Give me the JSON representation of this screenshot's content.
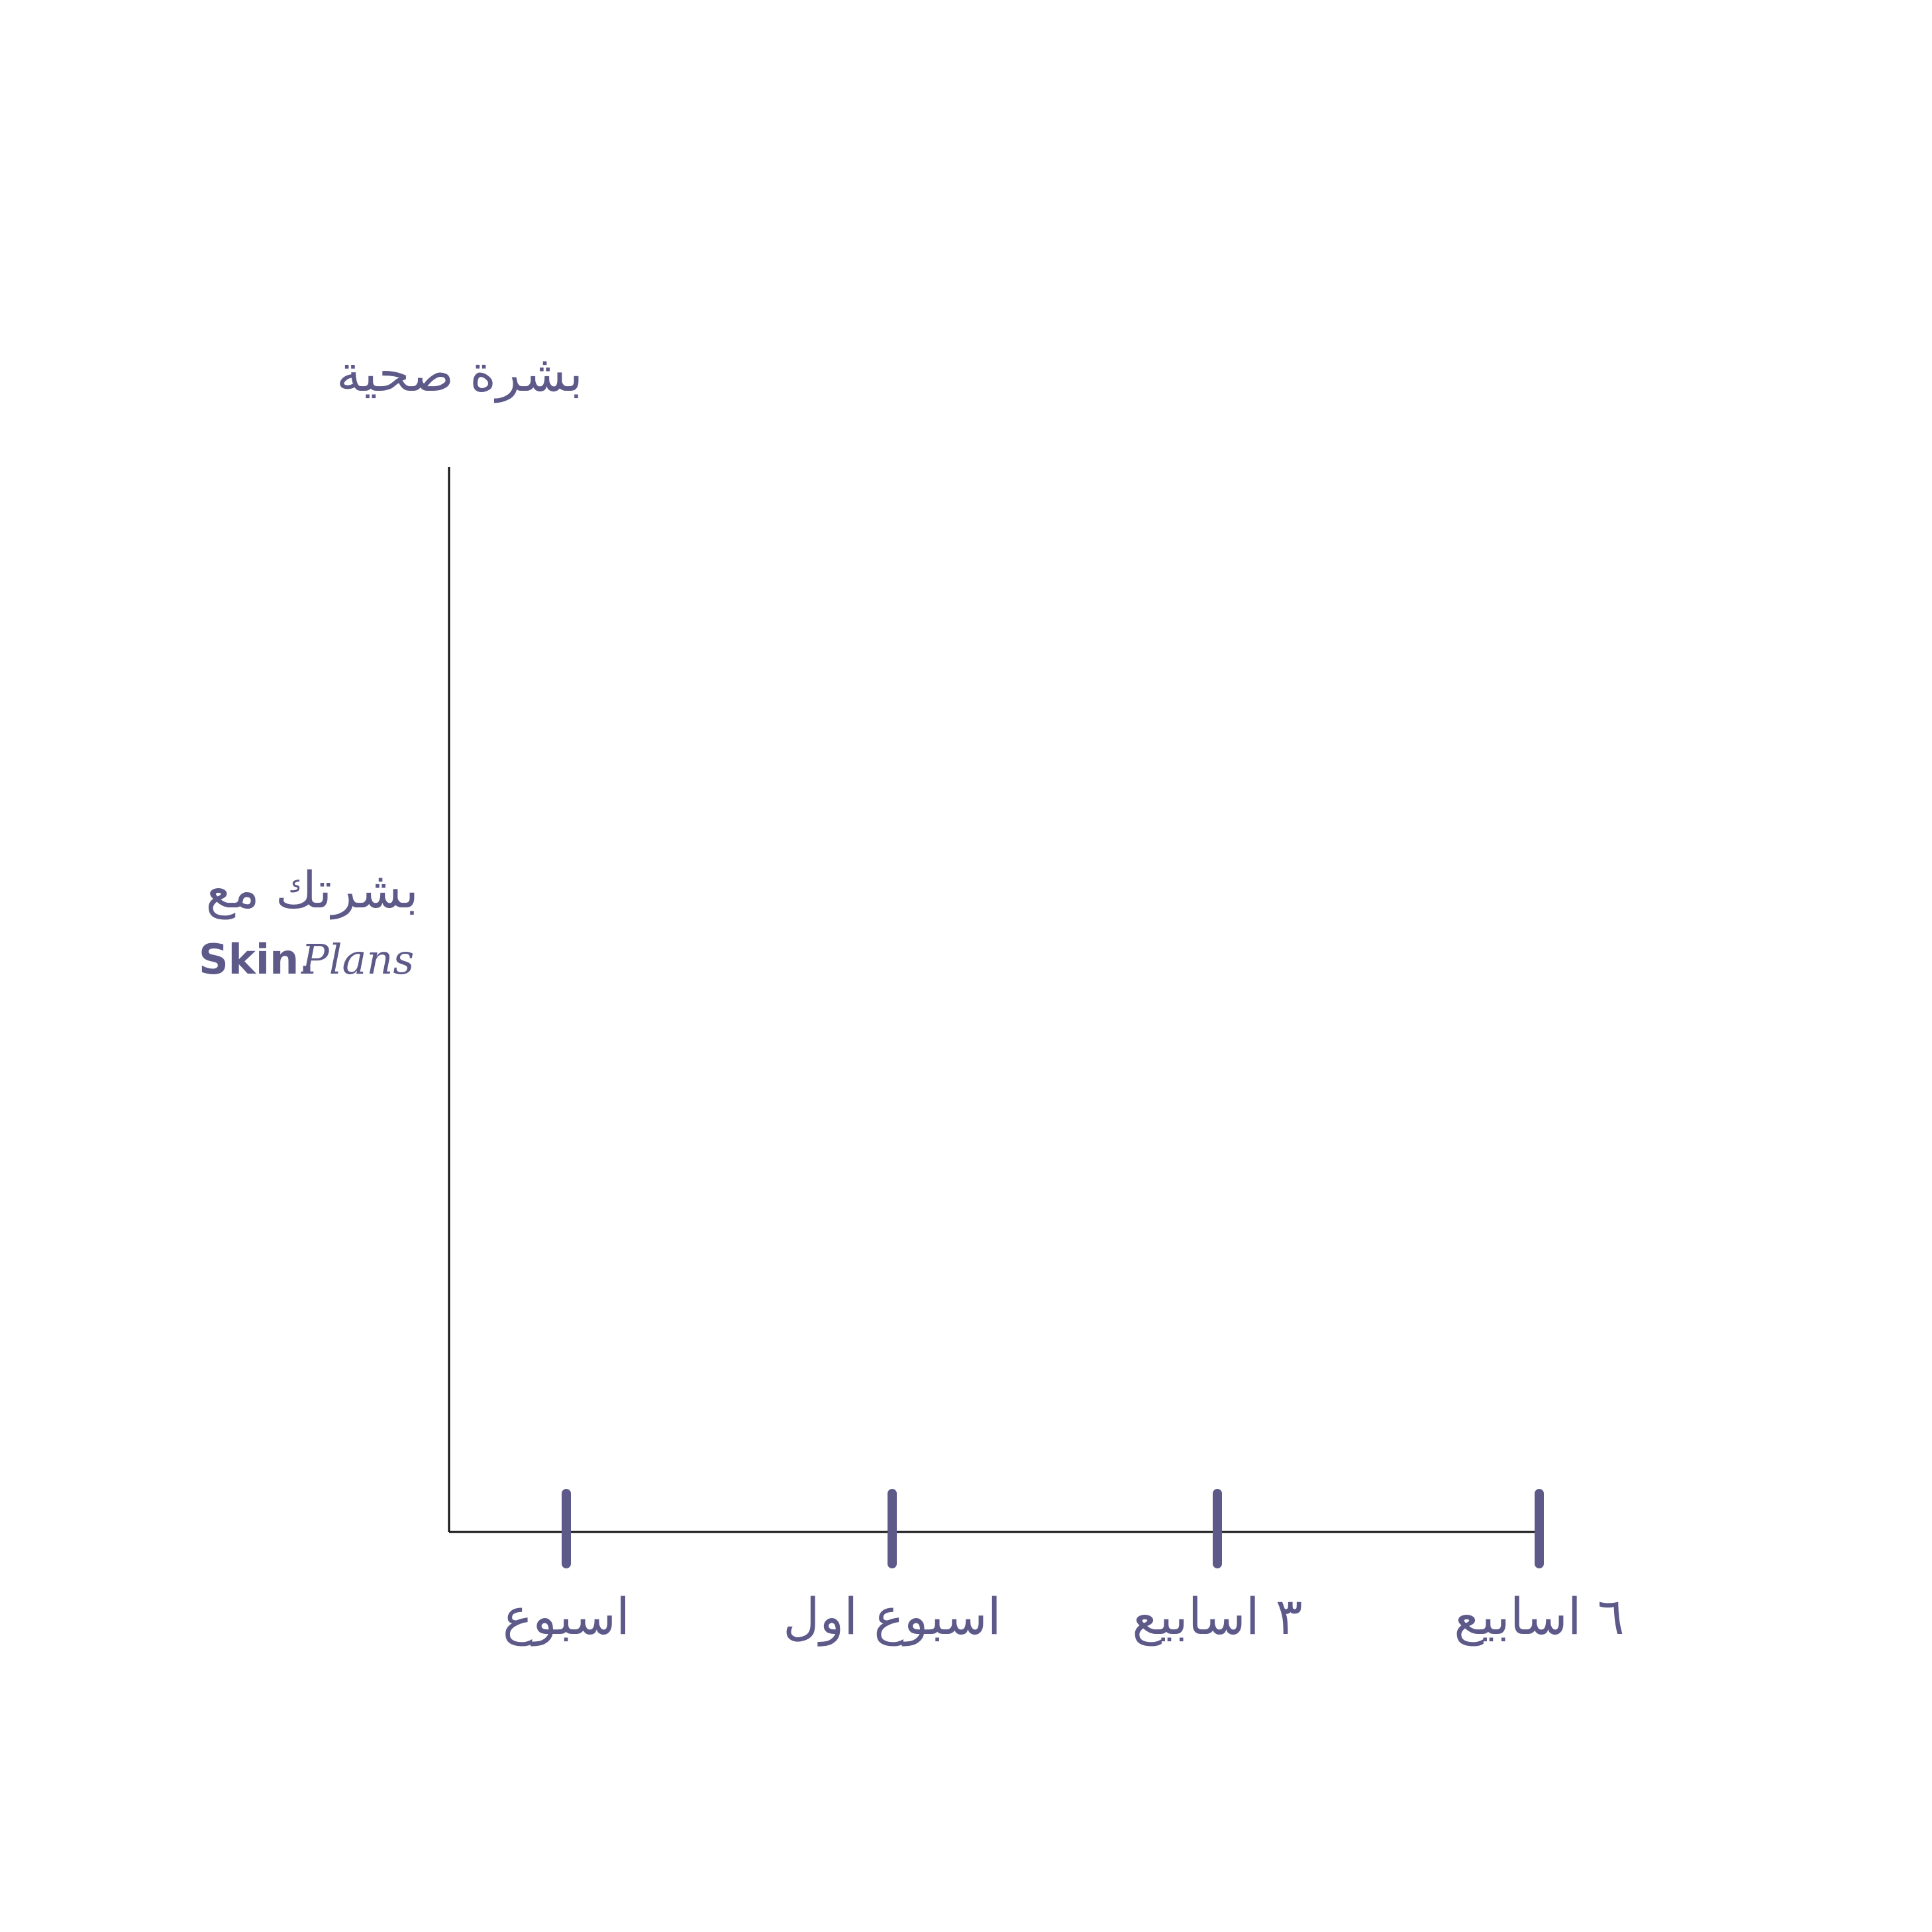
{
  "colors": {
    "accent": "#5d5a8a",
    "axis": "#111111",
    "background": "#ffffff"
  },
  "chart_data": {
    "type": "line",
    "categories": [
      "اسبوع",
      "اسبوع اول",
      "٣ اسابيع",
      "٦ اسابيع"
    ],
    "series": [],
    "title": "",
    "xlabel": "",
    "ylabel": "بشرة صحية",
    "y_side_label": "بشرتك مع",
    "brand": {
      "main": "Skin.",
      "script": "Plans"
    },
    "grid": false,
    "legend": "none"
  }
}
